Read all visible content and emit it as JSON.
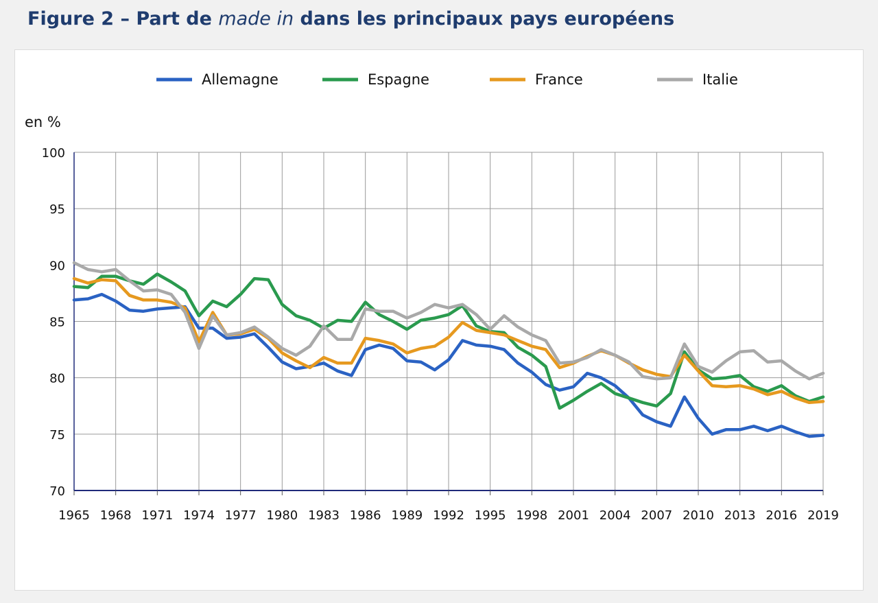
{
  "title": {
    "prefix": "Figure 2 – Part de ",
    "emphasis": "made in",
    "suffix": " dans les principaux pays européens"
  },
  "chart_data": {
    "type": "line",
    "ylabel": "en %",
    "ylim": [
      70,
      100
    ],
    "yticks": [
      70,
      75,
      80,
      85,
      90,
      95,
      100
    ],
    "xlim": [
      1965,
      2019
    ],
    "xticks": [
      1965,
      1968,
      1971,
      1974,
      1977,
      1980,
      1983,
      1986,
      1989,
      1992,
      1995,
      1998,
      2001,
      2004,
      2007,
      2010,
      2013,
      2016,
      2019
    ],
    "grid": true,
    "legend_position": "top",
    "x": [
      1965,
      1966,
      1967,
      1968,
      1969,
      1970,
      1971,
      1972,
      1973,
      1974,
      1975,
      1976,
      1977,
      1978,
      1979,
      1980,
      1981,
      1982,
      1983,
      1984,
      1985,
      1986,
      1987,
      1988,
      1989,
      1990,
      1991,
      1992,
      1993,
      1994,
      1995,
      1996,
      1997,
      1998,
      1999,
      2000,
      2001,
      2002,
      2003,
      2004,
      2005,
      2006,
      2007,
      2008,
      2009,
      2010,
      2011,
      2012,
      2013,
      2014,
      2015,
      2016,
      2017,
      2018,
      2019
    ],
    "series": [
      {
        "name": "Allemagne",
        "color": "#2a62c3",
        "values": [
          86.9,
          87.0,
          87.4,
          86.8,
          86.0,
          85.9,
          86.1,
          86.2,
          86.3,
          84.4,
          84.4,
          83.5,
          83.6,
          83.9,
          82.7,
          81.4,
          80.8,
          81.0,
          81.3,
          80.6,
          80.2,
          82.5,
          82.9,
          82.6,
          81.5,
          81.4,
          80.7,
          81.6,
          83.3,
          82.9,
          82.8,
          82.5,
          81.3,
          80.5,
          79.4,
          78.9,
          79.2,
          80.4,
          80.0,
          79.3,
          78.2,
          76.7,
          76.1,
          75.7,
          78.3,
          76.4,
          75.0,
          75.4,
          75.4,
          75.7,
          75.3,
          75.7,
          75.2,
          74.8,
          74.9
        ]
      },
      {
        "name": "Espagne",
        "color": "#2a9a4e",
        "values": [
          88.1,
          88.0,
          89.0,
          89.0,
          88.6,
          88.3,
          89.2,
          88.5,
          87.7,
          85.5,
          86.8,
          86.3,
          87.4,
          88.8,
          88.7,
          86.5,
          85.5,
          85.1,
          84.4,
          85.1,
          85.0,
          86.7,
          85.6,
          85.0,
          84.3,
          85.1,
          85.3,
          85.6,
          86.4,
          84.6,
          84.1,
          84.0,
          82.7,
          82.0,
          81.0,
          77.3,
          78.0,
          78.8,
          79.5,
          78.6,
          78.2,
          77.8,
          77.5,
          78.6,
          82.3,
          80.7,
          79.9,
          80.0,
          80.2,
          79.2,
          78.8,
          79.3,
          78.4,
          77.9,
          78.3
        ]
      },
      {
        "name": "France",
        "color": "#e6991f",
        "values": [
          88.8,
          88.4,
          88.7,
          88.6,
          87.3,
          86.9,
          86.9,
          86.7,
          86.2,
          83.2,
          85.8,
          83.8,
          83.9,
          84.3,
          83.5,
          82.2,
          81.5,
          80.9,
          81.8,
          81.3,
          81.3,
          83.5,
          83.3,
          83.0,
          82.2,
          82.6,
          82.8,
          83.6,
          84.9,
          84.2,
          84.0,
          83.8,
          83.3,
          82.8,
          82.5,
          80.9,
          81.3,
          81.9,
          82.4,
          82.0,
          81.3,
          80.7,
          80.3,
          80.1,
          82.0,
          80.6,
          79.3,
          79.2,
          79.3,
          79.0,
          78.5,
          78.8,
          78.2,
          77.8,
          77.9
        ]
      },
      {
        "name": "Italie",
        "color": "#a9a9a9",
        "values": [
          90.2,
          89.6,
          89.4,
          89.6,
          88.6,
          87.7,
          87.8,
          87.4,
          85.8,
          82.6,
          85.5,
          83.8,
          84.0,
          84.5,
          83.6,
          82.6,
          82.0,
          82.8,
          84.6,
          83.4,
          83.4,
          86.1,
          85.9,
          85.9,
          85.3,
          85.8,
          86.5,
          86.2,
          86.5,
          85.6,
          84.3,
          85.5,
          84.5,
          83.8,
          83.3,
          81.3,
          81.4,
          81.8,
          82.5,
          82.0,
          81.4,
          80.1,
          79.9,
          80.0,
          83.0,
          81.0,
          80.5,
          81.5,
          82.3,
          82.4,
          81.4,
          81.5,
          80.6,
          79.9,
          80.4
        ]
      }
    ]
  }
}
